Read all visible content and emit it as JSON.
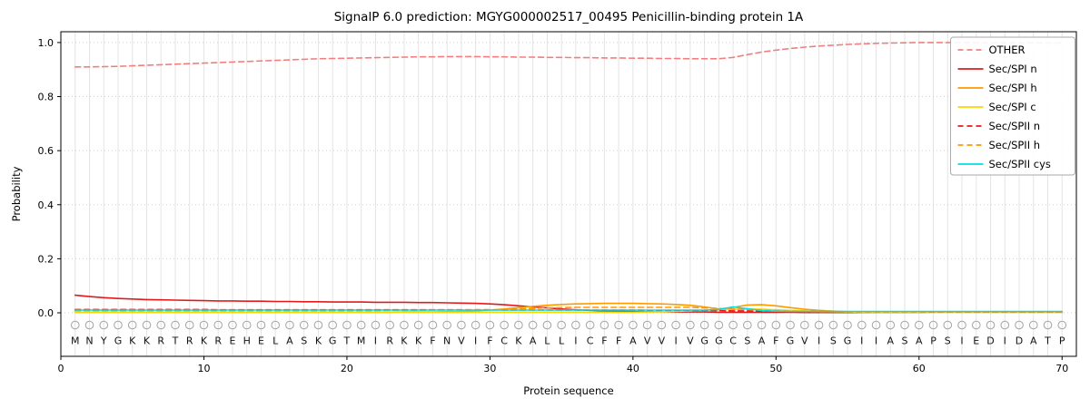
{
  "chart_data": {
    "type": "line",
    "title": "SignalP 6.0 prediction: MGYG000002517_00495 Penicillin-binding protein 1A",
    "xlabel": "Protein sequence",
    "ylabel": "Probability",
    "xlim": [
      0,
      71
    ],
    "ylim": [
      0.0,
      1.0
    ],
    "xticks": [
      0,
      10,
      20,
      30,
      40,
      50,
      60,
      70
    ],
    "yticks": [
      0.0,
      0.2,
      0.4,
      0.6,
      0.8,
      1.0
    ],
    "grid": {
      "vertical_per_residue": true,
      "horizontal_dotted": true
    },
    "legend_position": "upper right",
    "positions": {
      "start": 1,
      "end": 70
    },
    "sequence": "MNYGKKRTRKREHELASKGTMIRKKFNVIFCKALLICFFAVVIVGGCSAFGVISGIIASAPSIEDIDATP",
    "colors": {
      "other": "#f08080",
      "red": "#e31a1c",
      "orange": "#ff9a00",
      "gold": "#ffd500",
      "cyan": "#00e0e0",
      "gridline": "#e4e4e4",
      "sequence_marker": "#a3a3a3",
      "sequence_letter": "#111111"
    },
    "series": [
      {
        "name": "OTHER",
        "color": "#f08080",
        "style": "dashed",
        "values": [
          0.91,
          0.91,
          0.911,
          0.912,
          0.914,
          0.916,
          0.918,
          0.92,
          0.922,
          0.924,
          0.926,
          0.928,
          0.93,
          0.932,
          0.934,
          0.936,
          0.938,
          0.94,
          0.941,
          0.942,
          0.943,
          0.944,
          0.945,
          0.946,
          0.947,
          0.947,
          0.948,
          0.948,
          0.948,
          0.947,
          0.947,
          0.946,
          0.946,
          0.945,
          0.945,
          0.944,
          0.944,
          0.943,
          0.943,
          0.942,
          0.942,
          0.941,
          0.941,
          0.94,
          0.94,
          0.94,
          0.945,
          0.955,
          0.965,
          0.972,
          0.978,
          0.983,
          0.987,
          0.99,
          0.993,
          0.995,
          0.997,
          0.998,
          0.999,
          1.0,
          1.0,
          1.0,
          1.0,
          1.0,
          0.999,
          0.999,
          0.999,
          0.999,
          0.998,
          0.998
        ]
      },
      {
        "name": "Sec/SPI n",
        "color": "#e31a1c",
        "style": "solid",
        "values": [
          0.065,
          0.06,
          0.056,
          0.053,
          0.051,
          0.049,
          0.048,
          0.047,
          0.046,
          0.045,
          0.044,
          0.044,
          0.043,
          0.043,
          0.042,
          0.042,
          0.041,
          0.041,
          0.04,
          0.04,
          0.04,
          0.039,
          0.039,
          0.039,
          0.038,
          0.038,
          0.037,
          0.036,
          0.035,
          0.033,
          0.03,
          0.026,
          0.022,
          0.018,
          0.014,
          0.011,
          0.009,
          0.007,
          0.006,
          0.005,
          0.004,
          0.004,
          0.003,
          0.003,
          0.003,
          0.002,
          0.002,
          0.002,
          0.002,
          0.002,
          0.002,
          0.001,
          0.001,
          0.001,
          0.001,
          0.001,
          0.001,
          0.001,
          0.001,
          0.001,
          0.001,
          0.001,
          0.001,
          0.001,
          0.001,
          0.001,
          0.001,
          0.001,
          0.001,
          0.001
        ]
      },
      {
        "name": "Sec/SPI h",
        "color": "#ff9a00",
        "style": "solid",
        "values": [
          0.002,
          0.002,
          0.002,
          0.002,
          0.002,
          0.002,
          0.002,
          0.002,
          0.002,
          0.002,
          0.002,
          0.002,
          0.002,
          0.002,
          0.002,
          0.002,
          0.002,
          0.002,
          0.002,
          0.002,
          0.002,
          0.002,
          0.002,
          0.003,
          0.003,
          0.003,
          0.004,
          0.005,
          0.007,
          0.01,
          0.014,
          0.019,
          0.024,
          0.028,
          0.031,
          0.033,
          0.034,
          0.035,
          0.035,
          0.035,
          0.034,
          0.033,
          0.031,
          0.028,
          0.022,
          0.014,
          0.02,
          0.029,
          0.03,
          0.026,
          0.019,
          0.013,
          0.009,
          0.006,
          0.004,
          0.003,
          0.002,
          0.002,
          0.002,
          0.002,
          0.001,
          0.001,
          0.001,
          0.001,
          0.001,
          0.001,
          0.001,
          0.001,
          0.001,
          0.001
        ]
      },
      {
        "name": "Sec/SPI c",
        "color": "#ffd500",
        "style": "solid",
        "values": [
          0.002,
          0.002,
          0.002,
          0.002,
          0.002,
          0.002,
          0.002,
          0.002,
          0.002,
          0.002,
          0.002,
          0.002,
          0.002,
          0.002,
          0.002,
          0.002,
          0.002,
          0.002,
          0.002,
          0.002,
          0.002,
          0.002,
          0.002,
          0.002,
          0.002,
          0.002,
          0.002,
          0.002,
          0.002,
          0.002,
          0.002,
          0.002,
          0.002,
          0.002,
          0.002,
          0.002,
          0.002,
          0.002,
          0.002,
          0.002,
          0.003,
          0.004,
          0.005,
          0.007,
          0.009,
          0.011,
          0.013,
          0.014,
          0.013,
          0.011,
          0.009,
          0.007,
          0.005,
          0.004,
          0.003,
          0.002,
          0.002,
          0.002,
          0.002,
          0.002,
          0.001,
          0.001,
          0.001,
          0.001,
          0.001,
          0.001,
          0.001,
          0.001,
          0.001,
          0.001
        ]
      },
      {
        "name": "Sec/SPII n",
        "color": "#e31a1c",
        "style": "dashed",
        "values": [
          0.012,
          0.012,
          0.012,
          0.012,
          0.012,
          0.012,
          0.012,
          0.012,
          0.012,
          0.012,
          0.011,
          0.011,
          0.011,
          0.011,
          0.011,
          0.011,
          0.011,
          0.011,
          0.011,
          0.011,
          0.011,
          0.011,
          0.011,
          0.011,
          0.011,
          0.011,
          0.011,
          0.011,
          0.011,
          0.011,
          0.01,
          0.01,
          0.01,
          0.01,
          0.01,
          0.01,
          0.01,
          0.01,
          0.01,
          0.01,
          0.009,
          0.009,
          0.009,
          0.009,
          0.009,
          0.008,
          0.007,
          0.007,
          0.006,
          0.006,
          0.005,
          0.005,
          0.005,
          0.004,
          0.004,
          0.004,
          0.004,
          0.004,
          0.004,
          0.004,
          0.003,
          0.003,
          0.003,
          0.003,
          0.003,
          0.003,
          0.003,
          0.003,
          0.003,
          0.003
        ]
      },
      {
        "name": "Sec/SPII h",
        "color": "#ff9a00",
        "style": "dashed",
        "values": [
          0.008,
          0.008,
          0.008,
          0.008,
          0.008,
          0.008,
          0.008,
          0.008,
          0.008,
          0.008,
          0.008,
          0.008,
          0.008,
          0.008,
          0.008,
          0.008,
          0.008,
          0.008,
          0.008,
          0.008,
          0.008,
          0.008,
          0.009,
          0.009,
          0.009,
          0.01,
          0.01,
          0.01,
          0.011,
          0.011,
          0.012,
          0.014,
          0.016,
          0.018,
          0.019,
          0.02,
          0.02,
          0.02,
          0.02,
          0.02,
          0.02,
          0.02,
          0.02,
          0.02,
          0.018,
          0.016,
          0.014,
          0.012,
          0.01,
          0.008,
          0.006,
          0.005,
          0.004,
          0.004,
          0.004,
          0.004,
          0.004,
          0.004,
          0.004,
          0.004,
          0.003,
          0.003,
          0.003,
          0.003,
          0.003,
          0.003,
          0.003,
          0.003,
          0.003,
          0.003
        ]
      },
      {
        "name": "Sec/SPII cys",
        "color": "#00e0e0",
        "style": "solid",
        "values": [
          0.01,
          0.01,
          0.01,
          0.01,
          0.01,
          0.01,
          0.01,
          0.01,
          0.01,
          0.01,
          0.01,
          0.01,
          0.01,
          0.01,
          0.01,
          0.01,
          0.01,
          0.01,
          0.01,
          0.01,
          0.01,
          0.01,
          0.01,
          0.01,
          0.01,
          0.01,
          0.01,
          0.01,
          0.01,
          0.01,
          0.01,
          0.01,
          0.01,
          0.01,
          0.01,
          0.01,
          0.01,
          0.01,
          0.01,
          0.01,
          0.01,
          0.01,
          0.01,
          0.01,
          0.01,
          0.012,
          0.022,
          0.015,
          0.008,
          0.006,
          0.005,
          0.005,
          0.005,
          0.005,
          0.005,
          0.005,
          0.005,
          0.005,
          0.005,
          0.005,
          0.005,
          0.005,
          0.005,
          0.005,
          0.005,
          0.005,
          0.005,
          0.005,
          0.005,
          0.005
        ]
      }
    ]
  }
}
